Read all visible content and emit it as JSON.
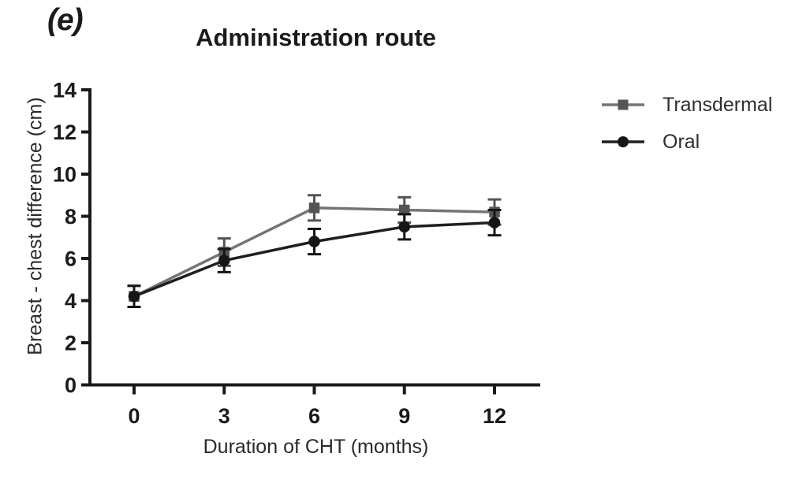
{
  "figure_label": "(e)",
  "chart_data": {
    "type": "line",
    "title": "Administration route",
    "xlabel": "Duration of CHT (months)",
    "ylabel": "Breast - chest difference (cm)",
    "x": [
      0,
      3,
      6,
      9,
      12
    ],
    "x_tick_labels": [
      "0",
      "3",
      "6",
      "9",
      "12"
    ],
    "y_ticks": [
      0,
      2,
      4,
      6,
      8,
      10,
      12,
      14
    ],
    "xlim": [
      0,
      12
    ],
    "ylim": [
      0,
      14
    ],
    "grid": false,
    "legend_position": "right",
    "series": [
      {
        "name": "Transdermal",
        "marker": "square",
        "color": "#545454",
        "line_color": "#747474",
        "values": [
          4.2,
          6.3,
          8.4,
          8.3,
          8.2
        ],
        "errors": [
          0.5,
          0.65,
          0.6,
          0.6,
          0.6
        ]
      },
      {
        "name": "Oral",
        "marker": "circle",
        "color": "#161616",
        "line_color": "#1f1f1f",
        "values": [
          4.2,
          5.9,
          6.8,
          7.5,
          7.7
        ],
        "errors": [
          0.5,
          0.55,
          0.6,
          0.6,
          0.6
        ]
      }
    ],
    "colors": {
      "axis": "#1a1a1a",
      "tick_text": "#1a1a1a",
      "label_text": "#2a2a2a"
    }
  }
}
